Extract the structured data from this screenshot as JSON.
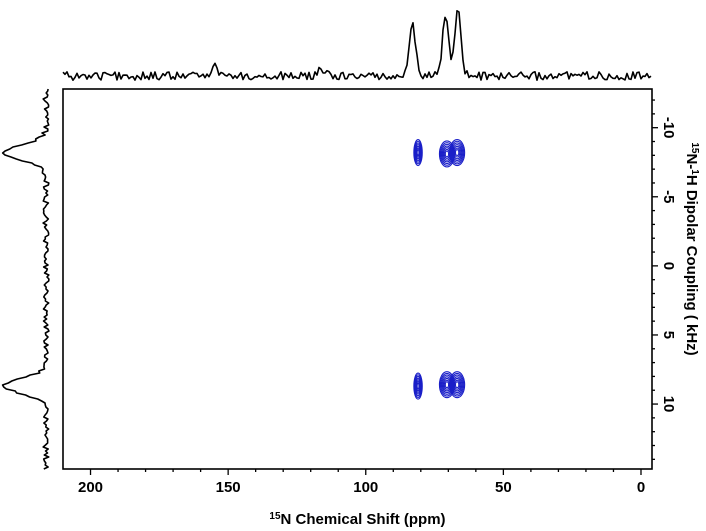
{
  "chart_data": {
    "type": "contour",
    "title": "",
    "xlabel": {
      "sup": "15",
      "text": "N Chemical Shift (ppm)"
    },
    "ylabel": {
      "sup1": "15",
      "mid": "N-",
      "sup2": "1",
      "text": "H Dipolar Coupling ( kHz)"
    },
    "xlim": [
      210,
      -4
    ],
    "ylim": [
      -12.8,
      14.7
    ],
    "x_ticks": [
      200,
      150,
      100,
      50,
      0
    ],
    "x_tick_labels": [
      "200",
      "150",
      "100",
      "50",
      "0"
    ],
    "y_ticks": [
      -10,
      -5,
      0,
      5,
      10
    ],
    "y_tick_labels": [
      "-10",
      "-5",
      "0",
      "5",
      "10"
    ],
    "contour_color": "#1a1fc8",
    "peaks": [
      {
        "x": 81.0,
        "y": -8.2
      },
      {
        "x": 70.5,
        "y": -8.1
      },
      {
        "x": 66.8,
        "y": -8.2
      },
      {
        "x": 81.0,
        "y": 8.7
      },
      {
        "x": 70.5,
        "y": 8.6
      },
      {
        "x": 66.8,
        "y": 8.6
      }
    ],
    "top_projection": {
      "peaks": [
        {
          "x": 83.0,
          "height": 0.72
        },
        {
          "x": 71.0,
          "height": 0.86
        },
        {
          "x": 66.5,
          "height": 1.0
        },
        {
          "x": 155.0,
          "height": 0.18
        },
        {
          "x": 116.0,
          "height": 0.1
        }
      ]
    },
    "left_projection": {
      "peaks": [
        {
          "y": -8.2,
          "height": 1.0
        },
        {
          "y": 8.7,
          "height": 1.0
        }
      ]
    }
  }
}
